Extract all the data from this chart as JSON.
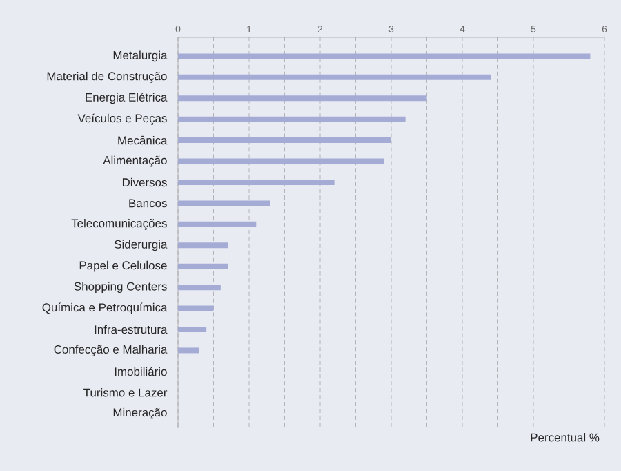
{
  "chart_data": {
    "type": "bar",
    "orientation": "horizontal",
    "xlabel": "Percentual %",
    "categories": [
      "Metalurgia",
      "Material de Construção",
      "Energia Elétrica",
      "Veículos e Peças",
      "Mecânica",
      "Alimentação",
      "Diversos",
      "Bancos",
      "Telecomunicações",
      "Siderurgia",
      "Papel e Celulose",
      "Shopping Centers",
      "Química e Petroquímica",
      "Infra-estrutura",
      "Confecção e Malharia",
      "Imobiliário",
      "Turismo e Lazer",
      "Mineração"
    ],
    "values": [
      5.8,
      4.4,
      3.5,
      3.2,
      3.0,
      2.9,
      2.2,
      1.3,
      1.1,
      0.7,
      0.7,
      0.6,
      0.5,
      0.4,
      0.3,
      0,
      0,
      0
    ],
    "color": "#a4acd6",
    "xlim": [
      0,
      6
    ],
    "xticks": [
      0,
      {
        "value": 0.5,
        "label": null
      },
      1,
      {
        "value": 1.5,
        "label": null
      },
      2,
      {
        "value": 2.5,
        "label": null
      },
      3,
      {
        "value": 3.5,
        "label": null
      },
      4,
      {
        "value": 4.5,
        "label": null
      },
      5,
      {
        "value": 5.5,
        "label": null
      },
      6
    ],
    "grid": "x"
  }
}
